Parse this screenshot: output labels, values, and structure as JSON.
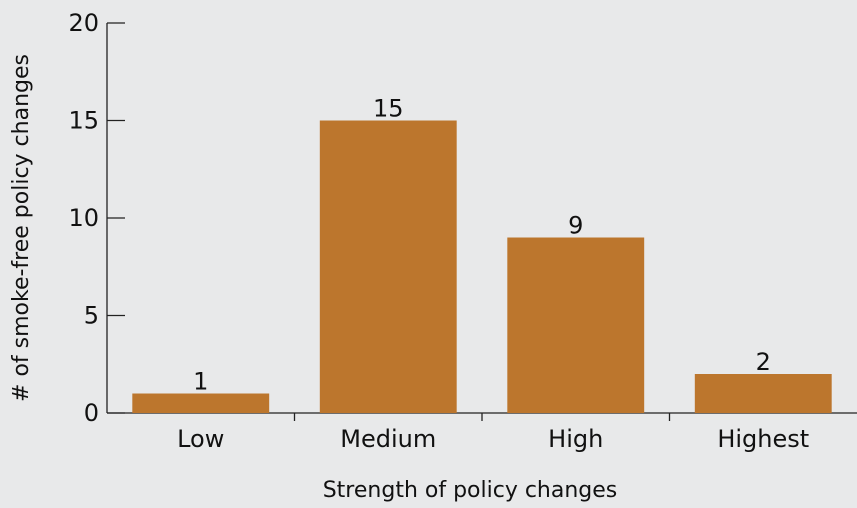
{
  "chart_data": {
    "type": "bar",
    "title": "",
    "categories": [
      "Low",
      "Medium",
      "High",
      "Highest"
    ],
    "values": [
      1,
      15,
      9,
      2
    ],
    "data_labels": [
      "1",
      "15",
      "9",
      "2"
    ],
    "xlabel": "Strength of policy changes",
    "ylabel": "# of smoke-free policy changes",
    "ylim": [
      0,
      20
    ],
    "yticks": [
      0,
      5,
      10,
      15,
      20
    ],
    "ytick_labels": [
      "0",
      "5",
      "10",
      "15",
      "20"
    ],
    "grid": false,
    "legend": "none",
    "colors": {
      "bar": "#bc762d",
      "background": "#e8e9ea",
      "axis": "#222222",
      "text": "#111111"
    }
  }
}
